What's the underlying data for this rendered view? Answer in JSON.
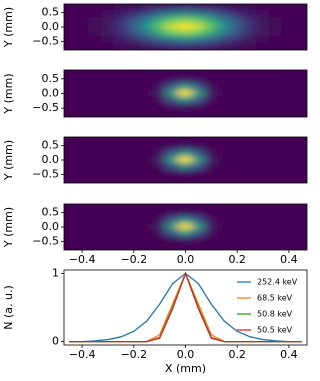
{
  "chart_data": [
    {
      "type": "heatmap",
      "ylabel": "Y (mm)",
      "colormap": "viridis",
      "x": [
        -0.45,
        -0.4,
        -0.35,
        -0.3,
        -0.25,
        -0.2,
        -0.15,
        -0.1,
        -0.05,
        0,
        0.05,
        0.1,
        0.15,
        0.2,
        0.25,
        0.3,
        0.35,
        0.4,
        0.45
      ],
      "y": [
        0.69,
        0.46,
        0.23,
        0,
        -0.23,
        -0.46,
        -0.69
      ],
      "values": [
        [
          0,
          0,
          0,
          0.01,
          0.02,
          0.04,
          0.07,
          0.1,
          0.13,
          0.14,
          0.13,
          0.1,
          0.07,
          0.04,
          0.02,
          0.01,
          0,
          0,
          0
        ],
        [
          0,
          0,
          0.01,
          0.03,
          0.07,
          0.13,
          0.21,
          0.31,
          0.39,
          0.42,
          0.39,
          0.31,
          0.21,
          0.13,
          0.07,
          0.03,
          0.01,
          0,
          0
        ],
        [
          0,
          0.01,
          0.02,
          0.06,
          0.13,
          0.25,
          0.41,
          0.6,
          0.75,
          0.81,
          0.75,
          0.6,
          0.41,
          0.25,
          0.13,
          0.06,
          0.02,
          0.01,
          0
        ],
        [
          0,
          0.01,
          0.03,
          0.07,
          0.16,
          0.31,
          0.51,
          0.74,
          0.93,
          1,
          0.93,
          0.74,
          0.51,
          0.31,
          0.16,
          0.07,
          0.03,
          0.01,
          0
        ],
        [
          0,
          0.01,
          0.02,
          0.06,
          0.13,
          0.25,
          0.41,
          0.6,
          0.75,
          0.81,
          0.75,
          0.6,
          0.41,
          0.25,
          0.13,
          0.06,
          0.02,
          0.01,
          0
        ],
        [
          0,
          0,
          0.01,
          0.03,
          0.07,
          0.13,
          0.21,
          0.31,
          0.39,
          0.42,
          0.39,
          0.31,
          0.21,
          0.13,
          0.07,
          0.03,
          0.01,
          0,
          0
        ],
        [
          0,
          0,
          0,
          0.01,
          0.02,
          0.04,
          0.07,
          0.1,
          0.13,
          0.14,
          0.13,
          0.1,
          0.07,
          0.04,
          0.02,
          0.01,
          0,
          0,
          0
        ]
      ],
      "xlim": [
        -0.47,
        0.47
      ],
      "ylim": [
        -0.8,
        0.8
      ],
      "yticks": [
        0.5,
        {
          "value": 0,
          "label": "0.0"
        },
        {
          "value": -0.5,
          "label": "−0.5"
        }
      ]
    },
    {
      "type": "heatmap",
      "ylabel": "Y (mm)",
      "colormap": "viridis",
      "x": [
        -0.45,
        -0.4,
        -0.35,
        -0.3,
        -0.25,
        -0.2,
        -0.15,
        -0.1,
        -0.05,
        0,
        0.05,
        0.1,
        0.15,
        0.2,
        0.25,
        0.3,
        0.35,
        0.4,
        0.45
      ],
      "y": [
        0.69,
        0.46,
        0.23,
        0,
        -0.23,
        -0.46,
        -0.69
      ],
      "values": [
        [
          0,
          0,
          0,
          0,
          0,
          0,
          0,
          0,
          0,
          0,
          0,
          0,
          0,
          0,
          0,
          0,
          0,
          0,
          0
        ],
        [
          0,
          0,
          0,
          0,
          0,
          0,
          0,
          0.01,
          0.04,
          0.07,
          0.04,
          0.01,
          0,
          0,
          0,
          0,
          0,
          0,
          0
        ],
        [
          0,
          0,
          0,
          0,
          0,
          0,
          0,
          0.04,
          0.28,
          0.52,
          0.28,
          0.04,
          0,
          0,
          0,
          0,
          0,
          0,
          0
        ],
        [
          0,
          0,
          0,
          0,
          0,
          0,
          0,
          0.08,
          0.54,
          1,
          0.54,
          0.08,
          0,
          0,
          0,
          0,
          0,
          0,
          0
        ],
        [
          0,
          0,
          0,
          0,
          0,
          0,
          0,
          0.04,
          0.28,
          0.52,
          0.28,
          0.04,
          0,
          0,
          0,
          0,
          0,
          0,
          0
        ],
        [
          0,
          0,
          0,
          0,
          0,
          0,
          0,
          0.01,
          0.04,
          0.07,
          0.04,
          0.01,
          0,
          0,
          0,
          0,
          0,
          0,
          0
        ],
        [
          0,
          0,
          0,
          0,
          0,
          0,
          0,
          0,
          0,
          0,
          0,
          0,
          0,
          0,
          0,
          0,
          0,
          0,
          0
        ]
      ],
      "xlim": [
        -0.47,
        0.47
      ],
      "ylim": [
        -0.8,
        0.8
      ],
      "yticks": [
        0.5,
        {
          "value": 0,
          "label": "0.0"
        },
        {
          "value": -0.5,
          "label": "−0.5"
        }
      ]
    },
    {
      "type": "heatmap",
      "ylabel": "Y (mm)",
      "colormap": "viridis",
      "x": [
        -0.45,
        -0.4,
        -0.35,
        -0.3,
        -0.25,
        -0.2,
        -0.15,
        -0.1,
        -0.05,
        0,
        0.05,
        0.1,
        0.15,
        0.2,
        0.25,
        0.3,
        0.35,
        0.4,
        0.45
      ],
      "y": [
        0.69,
        0.46,
        0.23,
        0,
        -0.23,
        -0.46,
        -0.69
      ],
      "values": [
        [
          0,
          0,
          0,
          0,
          0,
          0,
          0,
          0,
          0,
          0,
          0,
          0,
          0,
          0,
          0,
          0,
          0,
          0,
          0
        ],
        [
          0,
          0,
          0,
          0,
          0,
          0,
          0,
          0.01,
          0.04,
          0.07,
          0.04,
          0.01,
          0,
          0,
          0,
          0,
          0,
          0,
          0
        ],
        [
          0,
          0,
          0,
          0,
          0,
          0,
          0,
          0.04,
          0.28,
          0.52,
          0.28,
          0.04,
          0,
          0,
          0,
          0,
          0,
          0,
          0
        ],
        [
          0,
          0,
          0,
          0,
          0,
          0,
          0,
          0.08,
          0.54,
          1,
          0.54,
          0.08,
          0,
          0,
          0,
          0,
          0,
          0,
          0
        ],
        [
          0,
          0,
          0,
          0,
          0,
          0,
          0,
          0.04,
          0.28,
          0.52,
          0.28,
          0.04,
          0,
          0,
          0,
          0,
          0,
          0,
          0
        ],
        [
          0,
          0,
          0,
          0,
          0,
          0,
          0,
          0.01,
          0.04,
          0.07,
          0.04,
          0.01,
          0,
          0,
          0,
          0,
          0,
          0,
          0
        ],
        [
          0,
          0,
          0,
          0,
          0,
          0,
          0,
          0,
          0,
          0,
          0,
          0,
          0,
          0,
          0,
          0,
          0,
          0,
          0
        ]
      ],
      "xlim": [
        -0.47,
        0.47
      ],
      "ylim": [
        -0.8,
        0.8
      ],
      "yticks": [
        0.5,
        {
          "value": 0,
          "label": "0.0"
        },
        {
          "value": -0.5,
          "label": "−0.5"
        }
      ]
    },
    {
      "type": "heatmap",
      "ylabel": "Y (mm)",
      "colormap": "viridis",
      "x": [
        -0.45,
        -0.4,
        -0.35,
        -0.3,
        -0.25,
        -0.2,
        -0.15,
        -0.1,
        -0.05,
        0,
        0.05,
        0.1,
        0.15,
        0.2,
        0.25,
        0.3,
        0.35,
        0.4,
        0.45
      ],
      "y": [
        0.69,
        0.46,
        0.23,
        0,
        -0.23,
        -0.46,
        -0.69
      ],
      "values": [
        [
          0,
          0,
          0,
          0,
          0,
          0,
          0,
          0,
          0,
          0,
          0,
          0,
          0,
          0,
          0,
          0,
          0,
          0,
          0
        ],
        [
          0,
          0,
          0,
          0,
          0,
          0,
          0,
          0.01,
          0.04,
          0.07,
          0.04,
          0.01,
          0,
          0,
          0,
          0,
          0,
          0,
          0
        ],
        [
          0,
          0,
          0,
          0,
          0,
          0,
          0,
          0.04,
          0.28,
          0.52,
          0.28,
          0.04,
          0,
          0,
          0,
          0,
          0,
          0,
          0
        ],
        [
          0,
          0,
          0,
          0,
          0,
          0,
          0,
          0.08,
          0.54,
          1,
          0.54,
          0.08,
          0,
          0,
          0,
          0,
          0,
          0,
          0
        ],
        [
          0,
          0,
          0,
          0,
          0,
          0,
          0,
          0.04,
          0.28,
          0.52,
          0.28,
          0.04,
          0,
          0,
          0,
          0,
          0,
          0,
          0
        ],
        [
          0,
          0,
          0,
          0,
          0,
          0,
          0,
          0.01,
          0.04,
          0.07,
          0.04,
          0.01,
          0,
          0,
          0,
          0,
          0,
          0,
          0
        ],
        [
          0,
          0,
          0,
          0,
          0,
          0,
          0,
          0,
          0,
          0,
          0,
          0,
          0,
          0,
          0,
          0,
          0,
          0,
          0
        ]
      ],
      "xlim": [
        -0.47,
        0.47
      ],
      "ylim": [
        -0.8,
        0.8
      ],
      "yticks": [
        0.5,
        {
          "value": 0,
          "label": "0.0"
        },
        {
          "value": -0.5,
          "label": "−0.5"
        }
      ],
      "xticks": [
        {
          "value": -0.4,
          "label": "−0.4"
        },
        {
          "value": -0.2,
          "label": "−0.2"
        },
        {
          "value": 0,
          "label": "0.0"
        },
        0.2,
        0.4
      ]
    },
    {
      "type": "line",
      "xlabel": "X (mm)",
      "ylabel": "N (a. u.)",
      "legend": "upper right",
      "x": [
        -0.45,
        -0.4,
        -0.35,
        -0.3,
        -0.25,
        -0.2,
        -0.15,
        -0.1,
        -0.05,
        0,
        0.05,
        0.1,
        0.15,
        0.2,
        0.25,
        0.3,
        0.35,
        0.4,
        0.45
      ],
      "series": [
        {
          "name": "252.4 keV",
          "color": "#1f77b4",
          "values": [
            0,
            0,
            0.01,
            0.03,
            0.07,
            0.15,
            0.3,
            0.55,
            0.85,
            1,
            0.85,
            0.55,
            0.3,
            0.15,
            0.07,
            0.03,
            0.01,
            0,
            0
          ]
        },
        {
          "name": "68.5 keV",
          "color": "#ff7f0e",
          "values": [
            0,
            0,
            0,
            0,
            0,
            0,
            0,
            0.1,
            0.55,
            1,
            0.55,
            0.1,
            0,
            0,
            0,
            0,
            0,
            0,
            0
          ]
        },
        {
          "name": "50.8 keV",
          "color": "#2ca02c",
          "values": [
            0,
            0,
            0,
            0,
            0,
            0,
            0,
            0.06,
            0.5,
            1,
            0.5,
            0.06,
            0,
            0,
            0,
            0,
            0,
            0,
            0
          ]
        },
        {
          "name": "50.5 keV",
          "color": "#d62728",
          "values": [
            0,
            0,
            0,
            0,
            0,
            0,
            0,
            0.05,
            0.48,
            1,
            0.48,
            0.05,
            0,
            0,
            0,
            0,
            0,
            0,
            0
          ]
        }
      ],
      "xlim": [
        -0.47,
        0.47
      ],
      "ylim": [
        -0.05,
        1.05
      ],
      "xticks": [
        {
          "value": -0.4,
          "label": "−0.4"
        },
        {
          "value": -0.2,
          "label": "−0.2"
        },
        {
          "value": 0,
          "label": "0.0"
        },
        0.2,
        0.4
      ],
      "yticks": [
        0,
        1
      ]
    }
  ]
}
